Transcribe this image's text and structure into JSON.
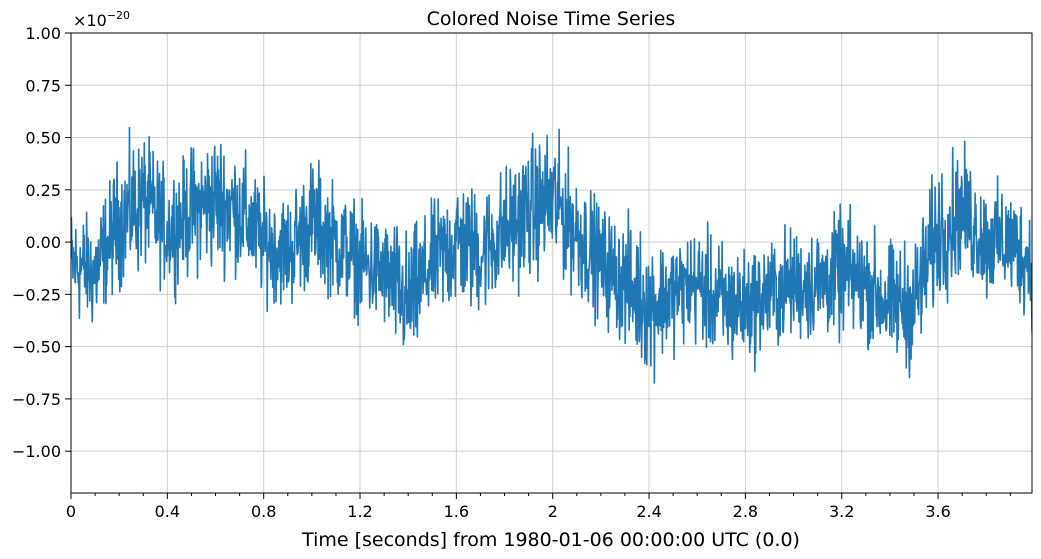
{
  "chart_data": {
    "type": "line",
    "title": "Colored Noise Time Series",
    "xlabel": "Time [seconds] from 1980-01-06 00:00:00 UTC (0.0)",
    "ylabel": "",
    "y_offset_base": "×10",
    "y_offset_exponent": "−20",
    "xlim": [
      0,
      3.99
    ],
    "ylim": [
      -1.2,
      1.0
    ],
    "x_ticks": [
      0,
      0.4,
      0.8,
      1.2,
      1.6,
      2.0,
      2.4,
      2.8,
      3.2,
      3.6
    ],
    "x_tick_labels": [
      "0",
      "0.4",
      "0.8",
      "1.2",
      "1.6",
      "2",
      "2.4",
      "2.8",
      "3.2",
      "3.6"
    ],
    "y_ticks": [
      1.0,
      0.75,
      0.5,
      0.25,
      0.0,
      -0.25,
      -0.5,
      -0.75,
      -1.0
    ],
    "y_tick_labels": [
      "1.00",
      "0.75",
      "0.50",
      "0.25",
      "0.00",
      "−0.25",
      "−0.50",
      "−0.75",
      "−1.00"
    ],
    "grid": true,
    "series": [
      {
        "color": "#1f77b4",
        "envelope_x": [
          0.0,
          0.1,
          0.2,
          0.3,
          0.4,
          0.5,
          0.6,
          0.7,
          0.8,
          0.9,
          1.0,
          1.1,
          1.2,
          1.3,
          1.4,
          1.5,
          1.6,
          1.7,
          1.8,
          1.9,
          2.0,
          2.1,
          2.2,
          2.3,
          2.4,
          2.5,
          2.6,
          2.7,
          2.8,
          2.9,
          3.0,
          3.1,
          3.2,
          3.3,
          3.4,
          3.5,
          3.6,
          3.7,
          3.8,
          3.9,
          3.99
        ],
        "envelope_center": [
          -0.1,
          -0.15,
          0.1,
          0.2,
          0.05,
          0.15,
          0.2,
          0.15,
          0.0,
          -0.05,
          0.1,
          0.0,
          -0.1,
          -0.15,
          -0.3,
          -0.1,
          0.0,
          -0.05,
          0.05,
          0.15,
          0.2,
          0.05,
          -0.1,
          -0.2,
          -0.3,
          -0.25,
          -0.2,
          -0.3,
          -0.3,
          -0.25,
          -0.2,
          -0.2,
          -0.15,
          -0.2,
          -0.3,
          -0.3,
          0.05,
          0.15,
          0.0,
          0.0,
          -0.1
        ],
        "envelope_spread": [
          0.45,
          0.45,
          0.5,
          0.55,
          0.45,
          0.5,
          0.55,
          0.5,
          0.45,
          0.45,
          0.5,
          0.45,
          0.45,
          0.45,
          0.55,
          0.45,
          0.55,
          0.5,
          0.5,
          0.55,
          0.55,
          0.5,
          0.45,
          0.5,
          0.55,
          0.45,
          0.45,
          0.5,
          0.45,
          0.45,
          0.45,
          0.45,
          0.5,
          0.45,
          0.5,
          0.5,
          0.55,
          0.5,
          0.45,
          0.45,
          0.45
        ]
      }
    ]
  }
}
